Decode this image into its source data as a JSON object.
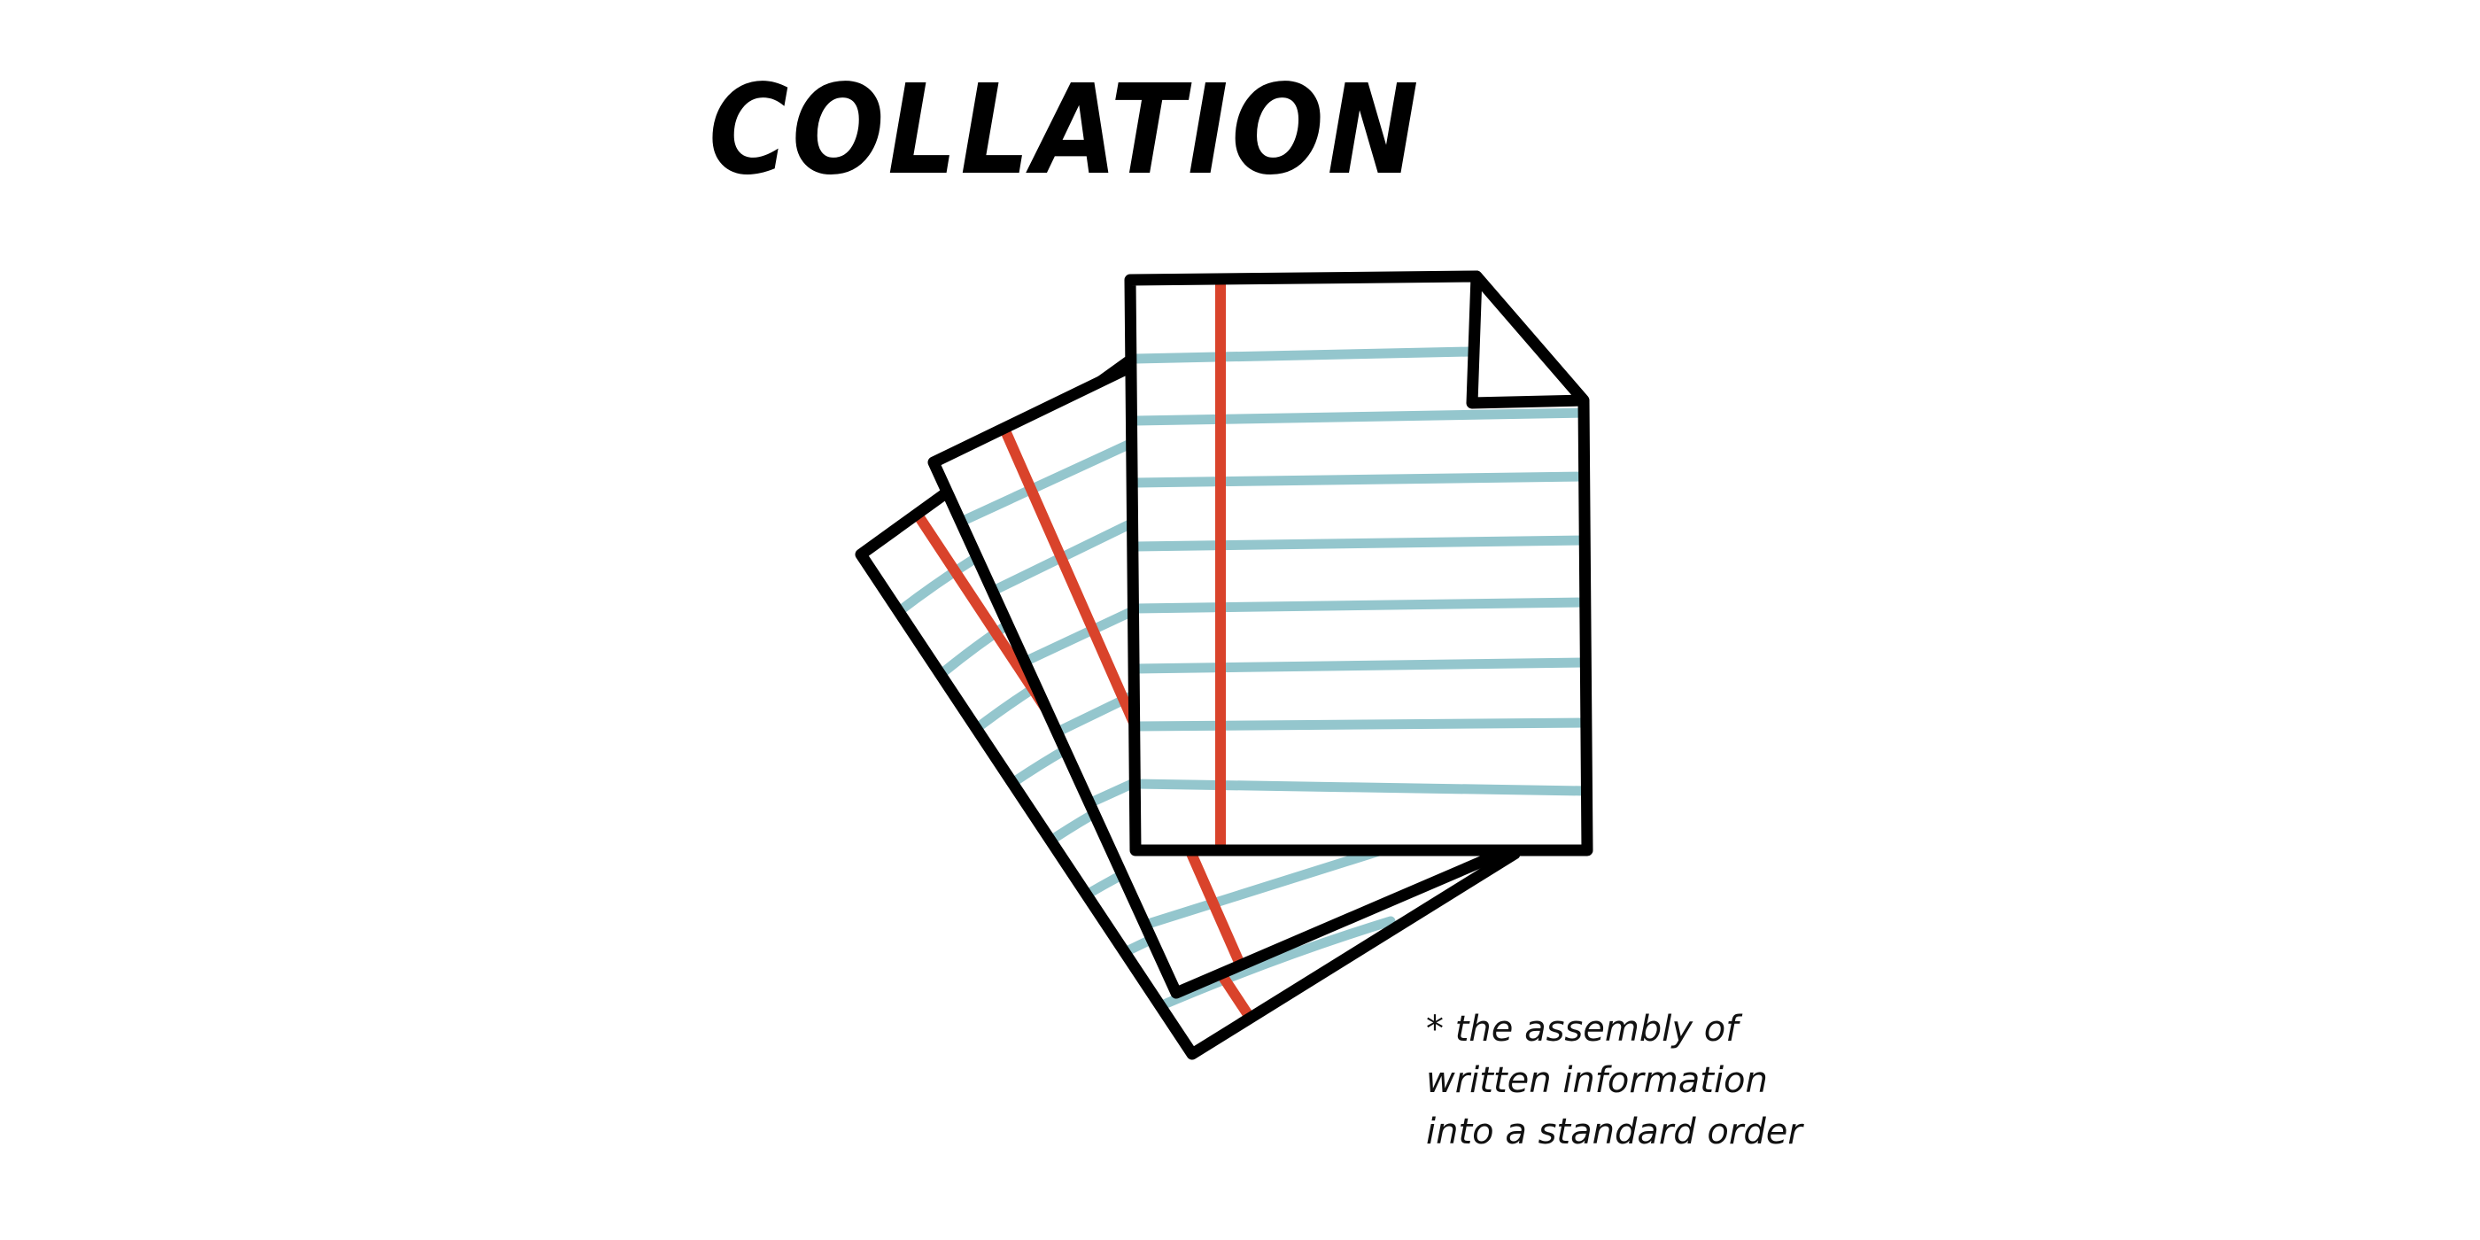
{
  "title": "COLLATION",
  "caption": {
    "lines": [
      "* the assembly of",
      "written information",
      "into a standard order"
    ]
  },
  "illustration": {
    "icon": "stacked-ruled-papers-icon",
    "sheets": 3,
    "colors": {
      "outline": "#000000",
      "margin_line": "#d9432b",
      "ruled_line": "#94c6cd",
      "paper": "#ffffff"
    }
  }
}
